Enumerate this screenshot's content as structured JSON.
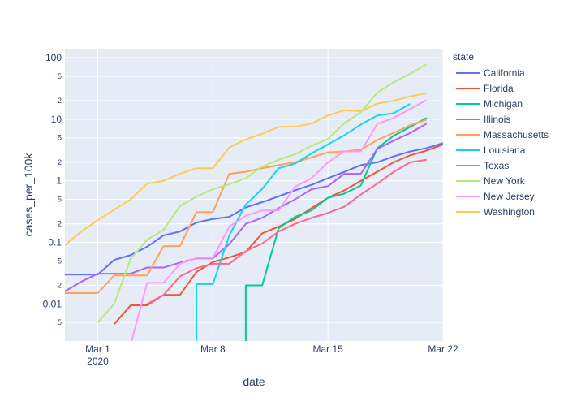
{
  "chart_data": {
    "type": "line",
    "xlabel": "date",
    "ylabel": "cases_per_100k",
    "x_scale": "date",
    "y_scale": "log",
    "xlim": [
      "2020-02-28",
      "2020-03-22"
    ],
    "ylim": [
      0.0025,
      140
    ],
    "x_ticks": [
      {
        "date": "2020-03-01",
        "label": "Mar 1",
        "sublabel": "2020"
      },
      {
        "date": "2020-03-08",
        "label": "Mar 8",
        "sublabel": ""
      },
      {
        "date": "2020-03-15",
        "label": "Mar 15",
        "sublabel": ""
      },
      {
        "date": "2020-03-22",
        "label": "Mar 22",
        "sublabel": ""
      }
    ],
    "y_major_ticks": [
      {
        "value": 0.01,
        "label": "0.01"
      },
      {
        "value": 0.1,
        "label": "0.1"
      },
      {
        "value": 1,
        "label": "1"
      },
      {
        "value": 10,
        "label": "10"
      },
      {
        "value": 100,
        "label": "100"
      }
    ],
    "y_minor_ticks": [
      {
        "value": 0.005,
        "label": "5"
      },
      {
        "value": 0.02,
        "label": "2"
      },
      {
        "value": 0.05,
        "label": "5"
      },
      {
        "value": 0.2,
        "label": "2"
      },
      {
        "value": 0.5,
        "label": "5"
      },
      {
        "value": 2,
        "label": "2"
      },
      {
        "value": 5,
        "label": "5"
      },
      {
        "value": 20,
        "label": "2"
      },
      {
        "value": 50,
        "label": "5"
      }
    ],
    "grid": true,
    "legend_title": "state",
    "legend_position": "right",
    "series": [
      {
        "name": "California",
        "color": "#636efa",
        "points": [
          [
            "2020-02-28",
            0.03
          ],
          [
            "2020-02-29",
            0.03
          ],
          [
            "2020-03-01",
            0.03
          ],
          [
            "2020-03-02",
            0.052
          ],
          [
            "2020-03-03",
            0.062
          ],
          [
            "2020-03-04",
            0.085
          ],
          [
            "2020-03-05",
            0.13
          ],
          [
            "2020-03-06",
            0.15
          ],
          [
            "2020-03-07",
            0.21
          ],
          [
            "2020-03-08",
            0.24
          ],
          [
            "2020-03-09",
            0.26
          ],
          [
            "2020-03-10",
            0.37
          ],
          [
            "2020-03-11",
            0.45
          ],
          [
            "2020-03-12",
            0.56
          ],
          [
            "2020-03-13",
            0.7
          ],
          [
            "2020-03-14",
            0.86
          ],
          [
            "2020-03-15",
            1.1
          ],
          [
            "2020-03-16",
            1.4
          ],
          [
            "2020-03-17",
            1.8
          ],
          [
            "2020-03-18",
            2.0
          ],
          [
            "2020-03-19",
            2.5
          ],
          [
            "2020-03-20",
            3.0
          ],
          [
            "2020-03-21",
            3.4
          ],
          [
            "2020-03-22",
            4.1
          ]
        ]
      },
      {
        "name": "Florida",
        "color": "#ef553b",
        "points": [
          [
            "2020-03-02",
            0.0047
          ],
          [
            "2020-03-03",
            0.0095
          ],
          [
            "2020-03-04",
            0.0095
          ],
          [
            "2020-03-05",
            0.014
          ],
          [
            "2020-03-06",
            0.014
          ],
          [
            "2020-03-07",
            0.033
          ],
          [
            "2020-03-08",
            0.048
          ],
          [
            "2020-03-09",
            0.057
          ],
          [
            "2020-03-10",
            0.07
          ],
          [
            "2020-03-11",
            0.14
          ],
          [
            "2020-03-12",
            0.18
          ],
          [
            "2020-03-13",
            0.24
          ],
          [
            "2020-03-14",
            0.36
          ],
          [
            "2020-03-15",
            0.53
          ],
          [
            "2020-03-16",
            0.7
          ],
          [
            "2020-03-17",
            1.0
          ],
          [
            "2020-03-18",
            1.4
          ],
          [
            "2020-03-19",
            2.0
          ],
          [
            "2020-03-20",
            2.6
          ],
          [
            "2020-03-21",
            3.1
          ],
          [
            "2020-03-22",
            3.9
          ]
        ]
      },
      {
        "name": "Michigan",
        "color": "#00cc96",
        "points": [
          [
            "2020-03-10",
            0.0016
          ],
          [
            "2020-03-10",
            0.02
          ],
          [
            "2020-03-11",
            0.02
          ],
          [
            "2020-03-12",
            0.17
          ],
          [
            "2020-03-13",
            0.26
          ],
          [
            "2020-03-14",
            0.33
          ],
          [
            "2020-03-15",
            0.53
          ],
          [
            "2020-03-16",
            0.62
          ],
          [
            "2020-03-17",
            0.84
          ],
          [
            "2020-03-18",
            3.4
          ],
          [
            "2020-03-19",
            5.4
          ],
          [
            "2020-03-20",
            7.5
          ],
          [
            "2020-03-21",
            10.5
          ]
        ]
      },
      {
        "name": "Illinois",
        "color": "#ab63fa",
        "points": [
          [
            "2020-02-28",
            0.016
          ],
          [
            "2020-02-29",
            0.023
          ],
          [
            "2020-03-01",
            0.031
          ],
          [
            "2020-03-02",
            0.031
          ],
          [
            "2020-03-03",
            0.031
          ],
          [
            "2020-03-04",
            0.039
          ],
          [
            "2020-03-05",
            0.039
          ],
          [
            "2020-03-06",
            0.047
          ],
          [
            "2020-03-07",
            0.055
          ],
          [
            "2020-03-08",
            0.055
          ],
          [
            "2020-03-09",
            0.094
          ],
          [
            "2020-03-10",
            0.2
          ],
          [
            "2020-03-11",
            0.25
          ],
          [
            "2020-03-12",
            0.36
          ],
          [
            "2020-03-13",
            0.5
          ],
          [
            "2020-03-14",
            0.73
          ],
          [
            "2020-03-15",
            0.82
          ],
          [
            "2020-03-16",
            1.3
          ],
          [
            "2020-03-17",
            1.3
          ],
          [
            "2020-03-18",
            3.3
          ],
          [
            "2020-03-19",
            4.5
          ],
          [
            "2020-03-20",
            6.0
          ],
          [
            "2020-03-21",
            8.5
          ]
        ]
      },
      {
        "name": "Massachusetts",
        "color": "#ffa15a",
        "points": [
          [
            "2020-02-28",
            0.015
          ],
          [
            "2020-02-29",
            0.015
          ],
          [
            "2020-03-01",
            0.015
          ],
          [
            "2020-03-02",
            0.029
          ],
          [
            "2020-03-03",
            0.029
          ],
          [
            "2020-03-04",
            0.029
          ],
          [
            "2020-03-05",
            0.087
          ],
          [
            "2020-03-06",
            0.087
          ],
          [
            "2020-03-07",
            0.31
          ],
          [
            "2020-03-08",
            0.31
          ],
          [
            "2020-03-09",
            1.3
          ],
          [
            "2020-03-10",
            1.4
          ],
          [
            "2020-03-11",
            1.6
          ],
          [
            "2020-03-12",
            1.8
          ],
          [
            "2020-03-13",
            2.0
          ],
          [
            "2020-03-14",
            2.4
          ],
          [
            "2020-03-15",
            2.9
          ],
          [
            "2020-03-16",
            3.0
          ],
          [
            "2020-03-17",
            3.2
          ],
          [
            "2020-03-18",
            4.6
          ],
          [
            "2020-03-19",
            6.0
          ],
          [
            "2020-03-20",
            8.0
          ],
          [
            "2020-03-21",
            9.8
          ]
        ]
      },
      {
        "name": "Louisiana",
        "color": "#19d3f3",
        "points": [
          [
            "2020-03-07",
            0.0016
          ],
          [
            "2020-03-07",
            0.021
          ],
          [
            "2020-03-08",
            0.021
          ],
          [
            "2020-03-09",
            0.13
          ],
          [
            "2020-03-10",
            0.41
          ],
          [
            "2020-03-11",
            0.74
          ],
          [
            "2020-03-12",
            1.6
          ],
          [
            "2020-03-13",
            1.9
          ],
          [
            "2020-03-14",
            2.8
          ],
          [
            "2020-03-15",
            3.9
          ],
          [
            "2020-03-16",
            5.5
          ],
          [
            "2020-03-17",
            8.2
          ],
          [
            "2020-03-18",
            11.5
          ],
          [
            "2020-03-19",
            12.5
          ],
          [
            "2020-03-20",
            17.8
          ]
        ]
      },
      {
        "name": "Texas",
        "color": "#ff6692",
        "points": [
          [
            "2020-03-04",
            0.01
          ],
          [
            "2020-03-05",
            0.014
          ],
          [
            "2020-03-06",
            0.028
          ],
          [
            "2020-03-07",
            0.038
          ],
          [
            "2020-03-08",
            0.045
          ],
          [
            "2020-03-09",
            0.045
          ],
          [
            "2020-03-10",
            0.072
          ],
          [
            "2020-03-11",
            0.096
          ],
          [
            "2020-03-12",
            0.15
          ],
          [
            "2020-03-13",
            0.2
          ],
          [
            "2020-03-14",
            0.25
          ],
          [
            "2020-03-15",
            0.3
          ],
          [
            "2020-03-16",
            0.38
          ],
          [
            "2020-03-17",
            0.6
          ],
          [
            "2020-03-18",
            0.9
          ],
          [
            "2020-03-19",
            1.4
          ],
          [
            "2020-03-20",
            2.0
          ],
          [
            "2020-03-21",
            2.2
          ]
        ]
      },
      {
        "name": "New York",
        "color": "#b6e880",
        "points": [
          [
            "2020-03-01",
            0.005
          ],
          [
            "2020-03-02",
            0.01
          ],
          [
            "2020-03-03",
            0.054
          ],
          [
            "2020-03-04",
            0.11
          ],
          [
            "2020-03-05",
            0.16
          ],
          [
            "2020-03-06",
            0.39
          ],
          [
            "2020-03-07",
            0.55
          ],
          [
            "2020-03-08",
            0.73
          ],
          [
            "2020-03-09",
            0.88
          ],
          [
            "2020-03-10",
            1.1
          ],
          [
            "2020-03-11",
            1.7
          ],
          [
            "2020-03-12",
            2.2
          ],
          [
            "2020-03-13",
            2.7
          ],
          [
            "2020-03-14",
            3.7
          ],
          [
            "2020-03-15",
            4.8
          ],
          [
            "2020-03-16",
            8.6
          ],
          [
            "2020-03-17",
            13
          ],
          [
            "2020-03-18",
            27
          ],
          [
            "2020-03-19",
            40
          ],
          [
            "2020-03-20",
            55
          ],
          [
            "2020-03-21",
            78
          ]
        ]
      },
      {
        "name": "New Jersey",
        "color": "#ff97ff",
        "points": [
          [
            "2020-03-03",
            0.0022
          ],
          [
            "2020-03-04",
            0.022
          ],
          [
            "2020-03-05",
            0.022
          ],
          [
            "2020-03-06",
            0.045
          ],
          [
            "2020-03-07",
            0.056
          ],
          [
            "2020-03-08",
            0.056
          ],
          [
            "2020-03-09",
            0.18
          ],
          [
            "2020-03-10",
            0.27
          ],
          [
            "2020-03-11",
            0.33
          ],
          [
            "2020-03-12",
            0.33
          ],
          [
            "2020-03-13",
            0.8
          ],
          [
            "2020-03-14",
            1.1
          ],
          [
            "2020-03-15",
            2.0
          ],
          [
            "2020-03-16",
            3.0
          ],
          [
            "2020-03-17",
            3.0
          ],
          [
            "2020-03-18",
            8.4
          ],
          [
            "2020-03-19",
            10.5
          ],
          [
            "2020-03-20",
            14.7
          ],
          [
            "2020-03-21",
            20.5
          ]
        ]
      },
      {
        "name": "Washington",
        "color": "#fecb52",
        "points": [
          [
            "2020-02-28",
            0.09
          ],
          [
            "2020-02-29",
            0.15
          ],
          [
            "2020-03-01",
            0.23
          ],
          [
            "2020-03-02",
            0.34
          ],
          [
            "2020-03-03",
            0.5
          ],
          [
            "2020-03-04",
            0.9
          ],
          [
            "2020-03-05",
            1.0
          ],
          [
            "2020-03-06",
            1.3
          ],
          [
            "2020-03-07",
            1.6
          ],
          [
            "2020-03-08",
            1.6
          ],
          [
            "2020-03-09",
            3.5
          ],
          [
            "2020-03-10",
            4.7
          ],
          [
            "2020-03-11",
            5.8
          ],
          [
            "2020-03-12",
            7.5
          ],
          [
            "2020-03-13",
            7.6
          ],
          [
            "2020-03-14",
            8.5
          ],
          [
            "2020-03-15",
            11.5
          ],
          [
            "2020-03-16",
            14
          ],
          [
            "2020-03-17",
            13.5
          ],
          [
            "2020-03-18",
            18
          ],
          [
            "2020-03-19",
            20
          ],
          [
            "2020-03-20",
            23.5
          ],
          [
            "2020-03-21",
            26.5
          ]
        ]
      }
    ]
  }
}
